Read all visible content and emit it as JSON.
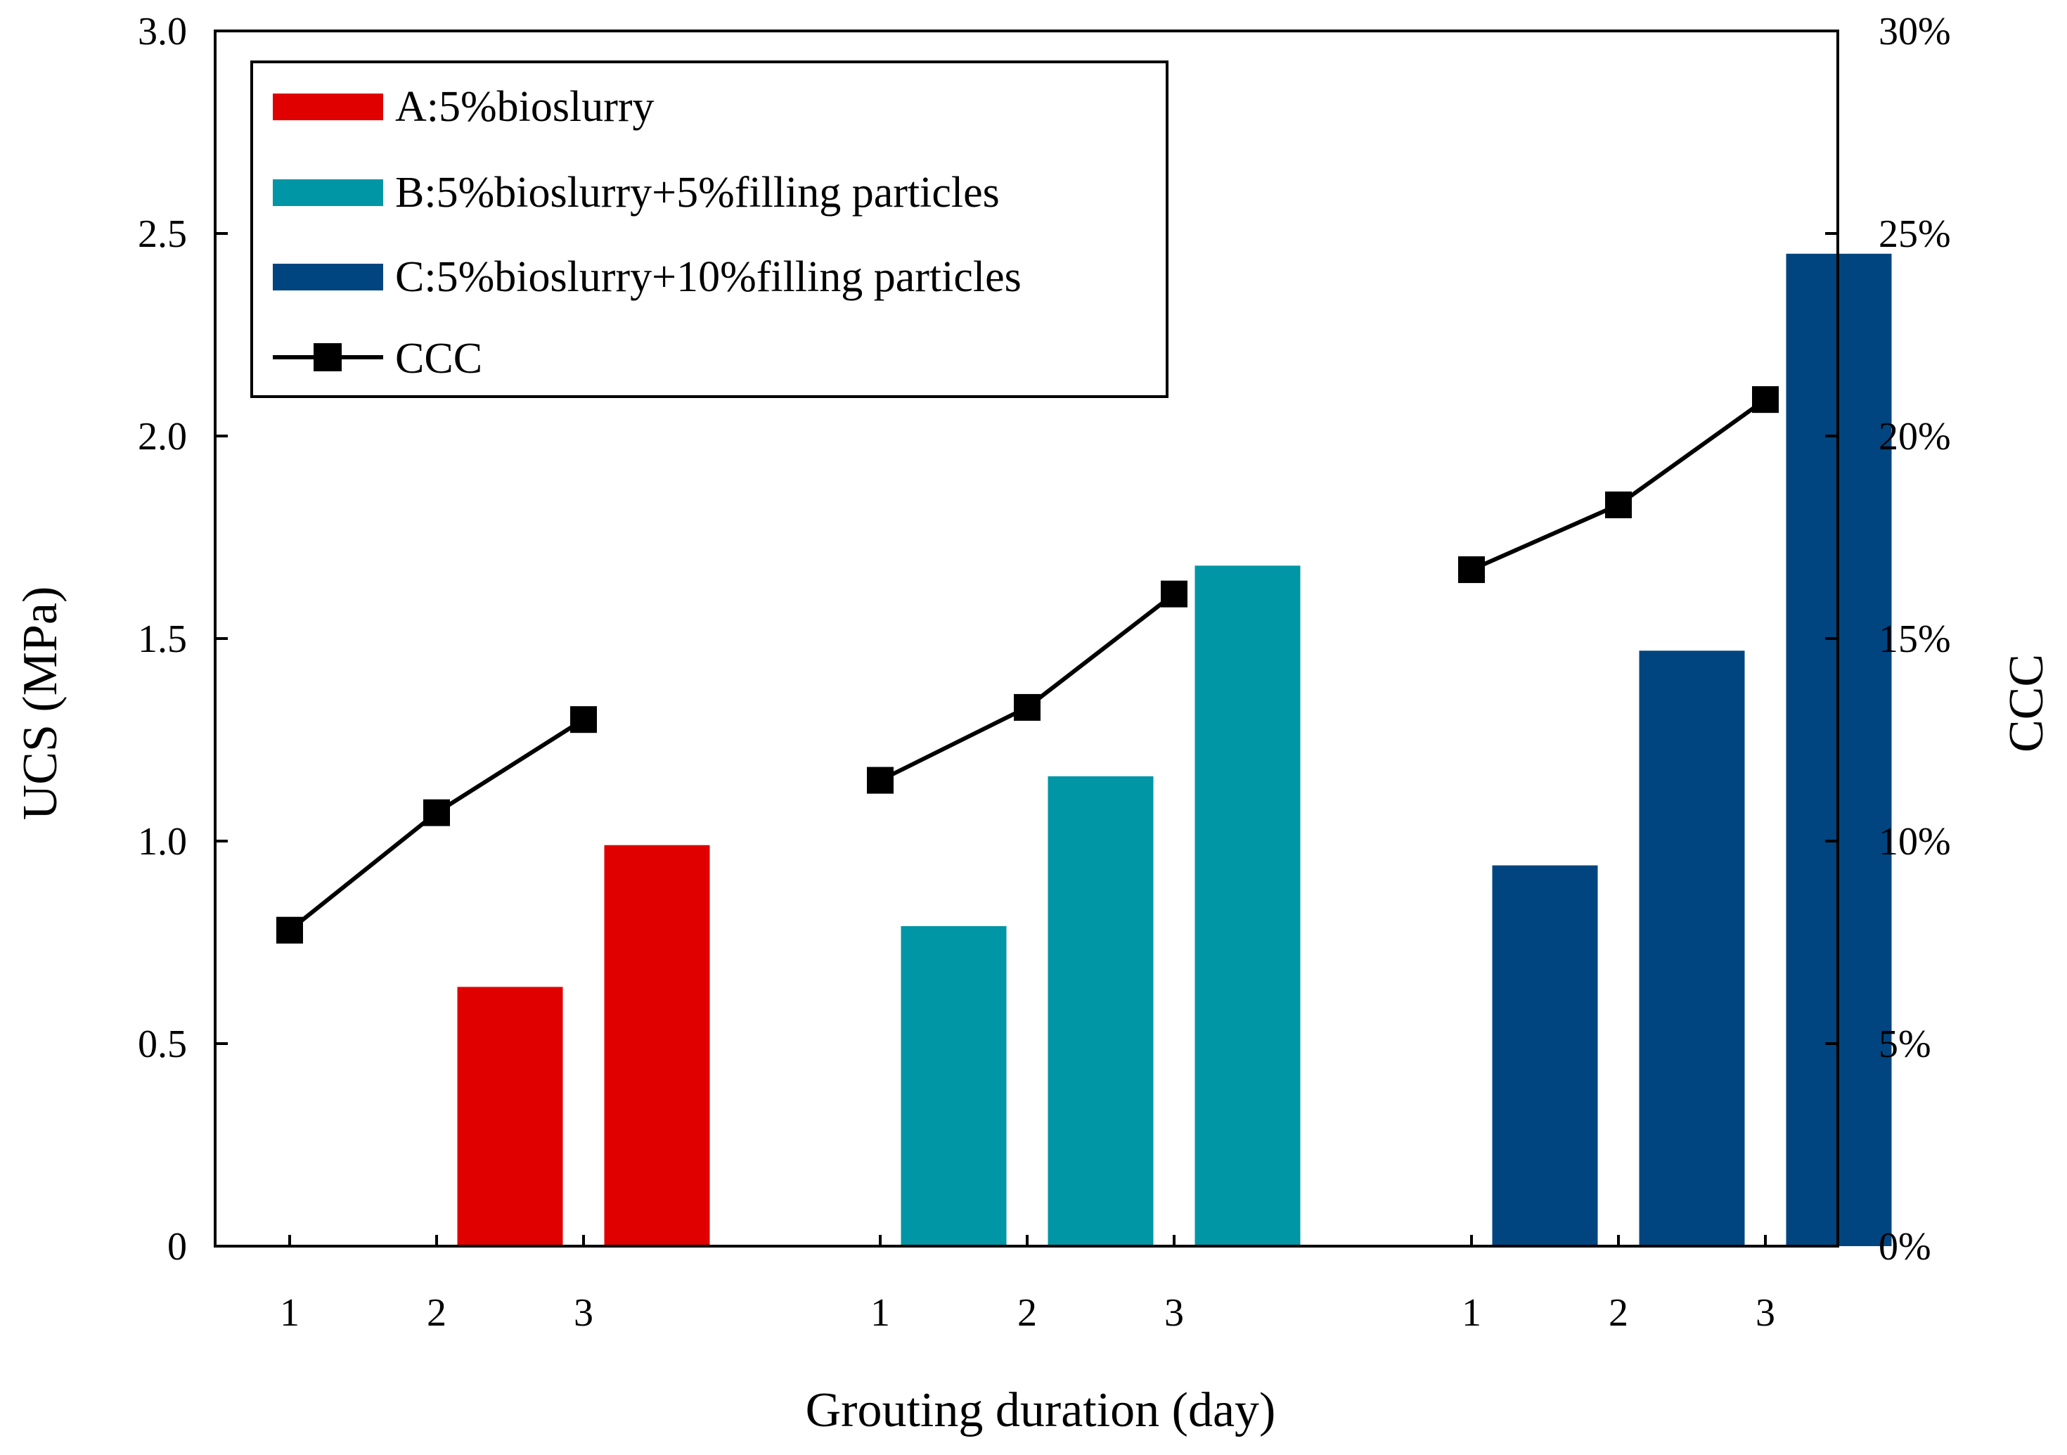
{
  "chart_data": {
    "type": "bar+line",
    "title": "",
    "xlabel": "Grouting duration (day)",
    "ylabel": "UCS (MPa)",
    "y2label": "CCC",
    "ylim": [
      0,
      3.0
    ],
    "y2lim": [
      0,
      0.3
    ],
    "yticks": [
      "0",
      "0.5",
      "1.0",
      "1.5",
      "2.0",
      "2.5",
      "3.0"
    ],
    "y2ticks": [
      "0%",
      "5%",
      "10%",
      "15%",
      "20%",
      "25%",
      "30%"
    ],
    "legend_position": "top-left",
    "groups": [
      {
        "name": "A:5%bioslurry",
        "color": "#e00000",
        "days": [
          "1",
          "2",
          "3"
        ],
        "ucs": [
          null,
          0.64,
          0.99
        ],
        "ccc": [
          0.078,
          0.107,
          0.13
        ]
      },
      {
        "name": "B:5%bioslurry+5%filling particles",
        "color": "#0096a5",
        "days": [
          "1",
          "2",
          "3"
        ],
        "ucs": [
          0.79,
          1.16,
          1.68
        ],
        "ccc": [
          0.115,
          0.133,
          0.161
        ]
      },
      {
        "name": "C:5%bioslurry+10%filling particles",
        "color": "#00457f",
        "days": [
          "1",
          "2",
          "3"
        ],
        "ucs": [
          0.94,
          1.47,
          2.45
        ],
        "ccc": [
          0.167,
          0.183,
          0.209
        ]
      }
    ],
    "line_series": {
      "name": "CCC",
      "color": "#000000"
    }
  }
}
